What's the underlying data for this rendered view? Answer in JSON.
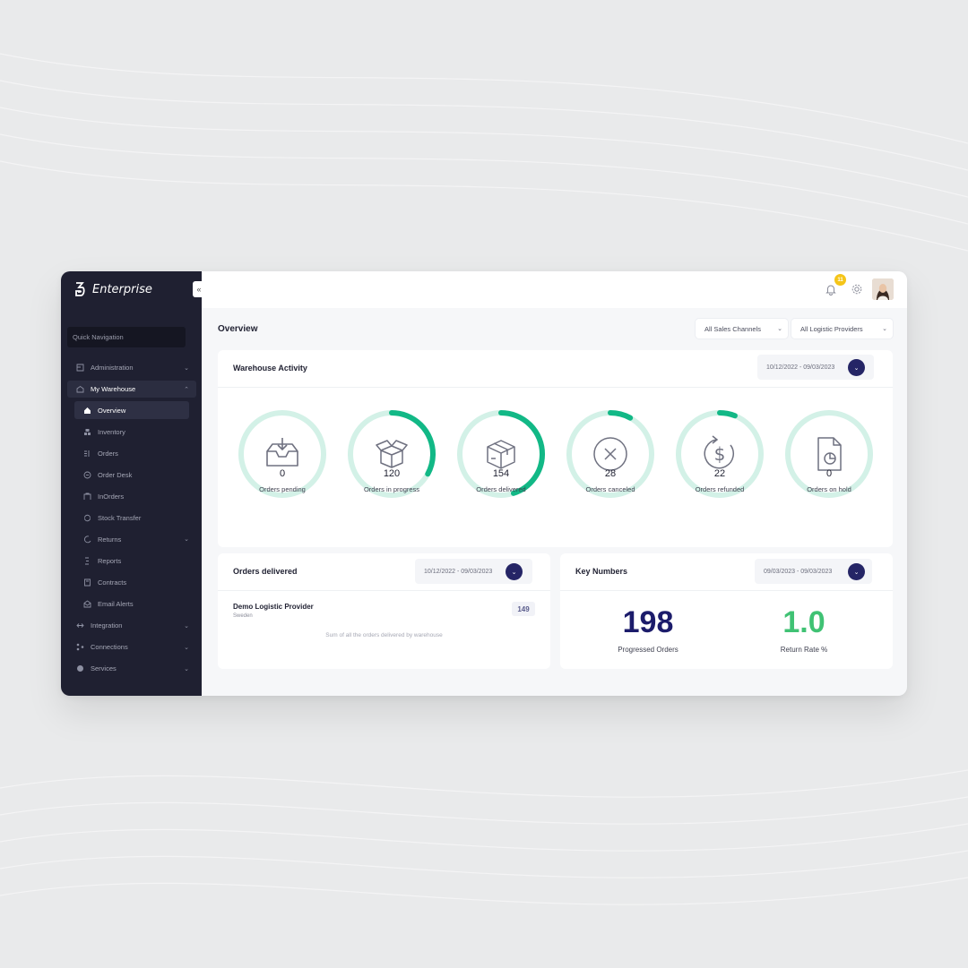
{
  "brand": {
    "name": "Enterprise"
  },
  "sidebar": {
    "quick_nav_placeholder": "Quick Navigation",
    "groups": [
      {
        "label": "Administration",
        "icon": "admin-icon"
      },
      {
        "label": "My Warehouse",
        "icon": "warehouse-icon",
        "expanded": true
      },
      {
        "label": "Integration",
        "icon": "integration-icon"
      },
      {
        "label": "Connections",
        "icon": "connections-icon"
      },
      {
        "label": "Services",
        "icon": "services-icon"
      }
    ],
    "warehouse_items": [
      {
        "label": "Overview",
        "icon": "home-icon",
        "active": true
      },
      {
        "label": "Inventory",
        "icon": "boxes-icon"
      },
      {
        "label": "Orders",
        "icon": "orders-icon"
      },
      {
        "label": "Order Desk",
        "icon": "order-desk-icon"
      },
      {
        "label": "InOrders",
        "icon": "inorders-icon"
      },
      {
        "label": "Stock Transfer",
        "icon": "transfer-icon"
      },
      {
        "label": "Returns",
        "icon": "returns-icon"
      },
      {
        "label": "Reports",
        "icon": "reports-icon"
      },
      {
        "label": "Contracts",
        "icon": "contracts-icon"
      },
      {
        "label": "Email Alerts",
        "icon": "email-icon"
      }
    ]
  },
  "topbar": {
    "notification_count": "11"
  },
  "main": {
    "title": "Overview",
    "filters": [
      "All Sales Channels",
      "All Logistic Providers"
    ]
  },
  "warehouse_activity": {
    "title": "Warehouse Activity",
    "date_range": "10/12/2022 - 09/03/2023",
    "metrics": [
      {
        "value": "0",
        "label": "Orders pending",
        "icon": "inbox-icon",
        "progress": 0
      },
      {
        "value": "120",
        "label": "Orders in progress",
        "icon": "open-box-icon",
        "progress": 0.33
      },
      {
        "value": "154",
        "label": "Orders delivered",
        "icon": "package-icon",
        "progress": 0.45
      },
      {
        "value": "28",
        "label": "Orders canceled",
        "icon": "cancel-icon",
        "progress": 0.08
      },
      {
        "value": "22",
        "label": "Orders refunded",
        "icon": "refund-icon",
        "progress": 0.06
      },
      {
        "value": "0",
        "label": "Orders on hold",
        "icon": "document-chart-icon",
        "progress": 0
      }
    ],
    "ring_track_color": "#d3f1e7",
    "ring_fill_color": "#12b886"
  },
  "orders_delivered": {
    "title": "Orders delivered",
    "date_range": "10/12/2022 - 09/03/2023",
    "provider": {
      "name": "Demo Logistic Provider",
      "country": "Sweden",
      "count": "149"
    },
    "note": "Sum of all the orders delivered by warehouse"
  },
  "key_numbers": {
    "title": "Key Numbers",
    "date_range": "09/03/2023 - 09/03/2023",
    "items": [
      {
        "value": "198",
        "label": "Progressed Orders",
        "color": "#1c1c6b"
      },
      {
        "value": "1.0",
        "label": "Return Rate %",
        "color": "#40c274"
      }
    ]
  }
}
